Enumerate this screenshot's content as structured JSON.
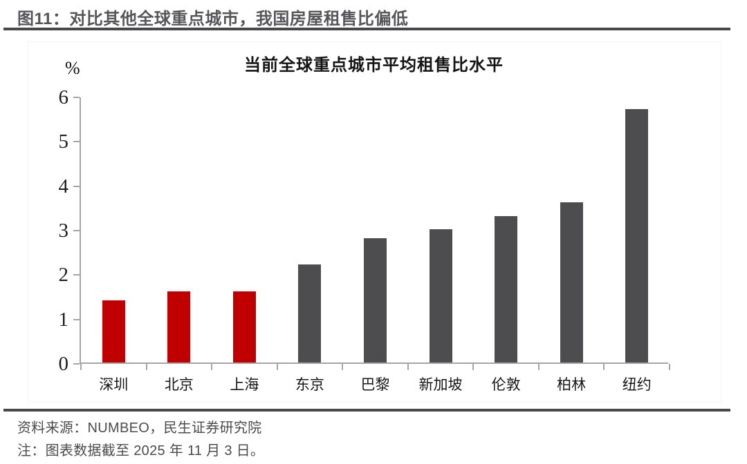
{
  "page": {
    "title": "图11：对比其他全球重点城市，我国房屋租售比偏低",
    "source_line": "资料来源：NUMBEO，民生证券研究院",
    "note_line": "注：图表数据截至 2025 年 11 月 3 日。"
  },
  "chart_data": {
    "type": "bar",
    "title": "当前全球重点城市平均租售比水平",
    "unit_label": "%",
    "categories": [
      "深圳",
      "北京",
      "上海",
      "东京",
      "巴黎",
      "新加坡",
      "伦敦",
      "柏林",
      "纽约"
    ],
    "values": [
      1.4,
      1.6,
      1.6,
      2.2,
      2.8,
      3.0,
      3.3,
      3.6,
      5.7
    ],
    "bar_colors": [
      "#c00000",
      "#c00000",
      "#c00000",
      "#4d4d50",
      "#4d4d50",
      "#4d4d50",
      "#4d4d50",
      "#4d4d50",
      "#4d4d50"
    ],
    "highlight_color": "#c00000",
    "default_color": "#4d4d50",
    "ylim": [
      0,
      6
    ],
    "yticks": [
      0,
      1,
      2,
      3,
      4,
      5,
      6
    ],
    "grid": false,
    "legend": false,
    "axis_color": "#a5a5a5"
  }
}
